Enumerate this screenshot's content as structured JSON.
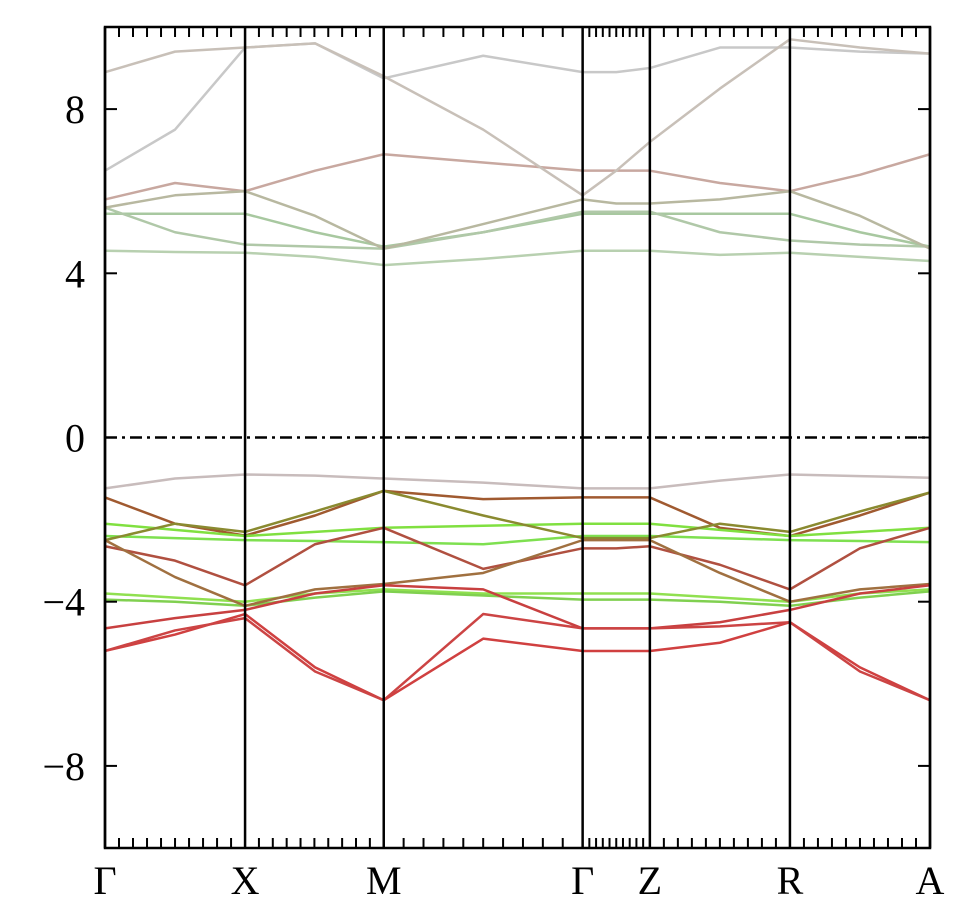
{
  "chart_data": {
    "type": "line",
    "x": [
      0,
      0.5,
      1,
      1.5,
      1.99,
      2.7,
      3.41,
      3.65,
      3.89,
      4.39,
      4.89,
      5.39,
      5.89
    ],
    "xlim": [
      0,
      5.89
    ],
    "xticks": [
      {
        "value": 0,
        "label": "Γ"
      },
      {
        "value": 1,
        "label": "X"
      },
      {
        "value": 1.99,
        "label": "M"
      },
      {
        "value": 3.41,
        "label": "Γ"
      },
      {
        "value": 3.89,
        "label": "Z"
      },
      {
        "value": 4.89,
        "label": "R"
      },
      {
        "value": 5.89,
        "label": "A"
      }
    ],
    "ylim": [
      -10,
      10
    ],
    "yticks": [
      {
        "value": -8,
        "label": "−8"
      },
      {
        "value": -4,
        "label": "−4"
      },
      0,
      4,
      8
    ],
    "fermi_level": 0,
    "series": [
      {
        "color": "#c8bcbc",
        "values": [
          -1.24,
          -1.0,
          -0.9,
          -0.93,
          -1.0,
          -1.1,
          -1.24,
          -1.24,
          -1.24,
          -1.05,
          -0.9,
          -0.94,
          -0.98
        ]
      },
      {
        "color": "#a05a30",
        "values": [
          -1.46,
          -2.1,
          -2.39,
          -1.9,
          -1.3,
          -1.5,
          -1.46,
          -1.46,
          -1.46,
          -2.2,
          -2.4,
          -1.9,
          -1.34
        ]
      },
      {
        "color": "#80e040",
        "values": [
          -2.1,
          -2.25,
          -2.4,
          -2.3,
          -2.2,
          -2.15,
          -2.1,
          -2.1,
          -2.1,
          -2.25,
          -2.4,
          -2.3,
          -2.2
        ]
      },
      {
        "color": "#7ee050",
        "values": [
          -2.4,
          -2.45,
          -2.5,
          -2.52,
          -2.55,
          -2.6,
          -2.4,
          -2.4,
          -2.4,
          -2.45,
          -2.5,
          -2.52,
          -2.55
        ]
      },
      {
        "color": "#8a8a30",
        "values": [
          -2.5,
          -2.1,
          -2.3,
          -1.8,
          -1.3,
          -1.9,
          -2.45,
          -2.45,
          -2.45,
          -2.1,
          -2.3,
          -1.8,
          -1.34
        ]
      },
      {
        "color": "#b05040",
        "values": [
          -2.65,
          -3.0,
          -3.6,
          -2.6,
          -2.2,
          -3.2,
          -2.7,
          -2.7,
          -2.65,
          -3.1,
          -3.7,
          -2.7,
          -2.2
        ]
      },
      {
        "color": "#90e050",
        "values": [
          -3.8,
          -3.9,
          -4.0,
          -3.8,
          -3.7,
          -3.8,
          -3.8,
          -3.8,
          -3.8,
          -3.9,
          -4.0,
          -3.8,
          -3.7
        ]
      },
      {
        "color": "#80d050",
        "values": [
          -3.95,
          -4.0,
          -4.1,
          -3.9,
          -3.75,
          -3.85,
          -3.95,
          -3.95,
          -3.95,
          -4.0,
          -4.1,
          -3.9,
          -3.75
        ]
      },
      {
        "color": "#a07040",
        "values": [
          -2.5,
          -3.4,
          -4.1,
          -3.7,
          -3.57,
          -3.3,
          -2.5,
          -2.5,
          -2.5,
          -3.3,
          -4.0,
          -3.7,
          -3.57
        ]
      },
      {
        "color": "#c84040",
        "values": [
          -4.65,
          -4.4,
          -4.2,
          -3.8,
          -3.6,
          -3.7,
          -4.65,
          -4.65,
          -4.65,
          -4.5,
          -4.2,
          -3.8,
          -3.6
        ]
      },
      {
        "color": "#d04040",
        "values": [
          -5.2,
          -4.8,
          -4.3,
          -5.6,
          -6.4,
          -4.9,
          -5.2,
          -5.2,
          -5.2,
          -5.0,
          -4.5,
          -5.6,
          -6.4
        ]
      },
      {
        "color": "#cc4444",
        "values": [
          -5.2,
          -4.7,
          -4.4,
          -5.7,
          -6.4,
          -4.3,
          -4.65,
          -4.65,
          -4.65,
          -4.6,
          -4.5,
          -5.7,
          -6.4
        ]
      },
      {
        "color": "#b8d0b0",
        "values": [
          4.55,
          4.52,
          4.5,
          4.4,
          4.2,
          4.35,
          4.55,
          4.55,
          4.55,
          4.45,
          4.5,
          4.4,
          4.3
        ]
      },
      {
        "color": "#a8c8a0",
        "values": [
          5.45,
          5.45,
          5.45,
          5.0,
          4.65,
          5.0,
          5.45,
          5.45,
          5.45,
          5.45,
          5.45,
          5.0,
          4.65
        ]
      },
      {
        "color": "#b0c8a8",
        "values": [
          5.6,
          5.0,
          4.7,
          4.65,
          4.6,
          5.0,
          5.5,
          5.5,
          5.5,
          5.0,
          4.8,
          4.7,
          4.65
        ]
      },
      {
        "color": "#c8a8a0",
        "values": [
          5.8,
          6.2,
          6.0,
          6.5,
          6.9,
          6.7,
          6.5,
          6.5,
          6.5,
          6.2,
          6.0,
          6.4,
          6.9
        ]
      },
      {
        "color": "#b8b8a0",
        "values": [
          5.6,
          5.9,
          6.0,
          5.4,
          4.6,
          5.2,
          5.8,
          5.7,
          5.7,
          5.8,
          6.0,
          5.4,
          4.6
        ]
      },
      {
        "color": "#c8c8c8",
        "values": [
          6.5,
          7.5,
          9.5,
          9.6,
          8.75,
          9.3,
          8.9,
          8.9,
          9.0,
          9.5,
          9.5,
          9.4,
          9.35
        ]
      },
      {
        "color": "#c8c0b8",
        "values": [
          8.9,
          9.4,
          9.5,
          9.6,
          8.8,
          7.5,
          5.9,
          6.5,
          7.2,
          8.5,
          9.7,
          9.5,
          9.35
        ]
      }
    ]
  }
}
